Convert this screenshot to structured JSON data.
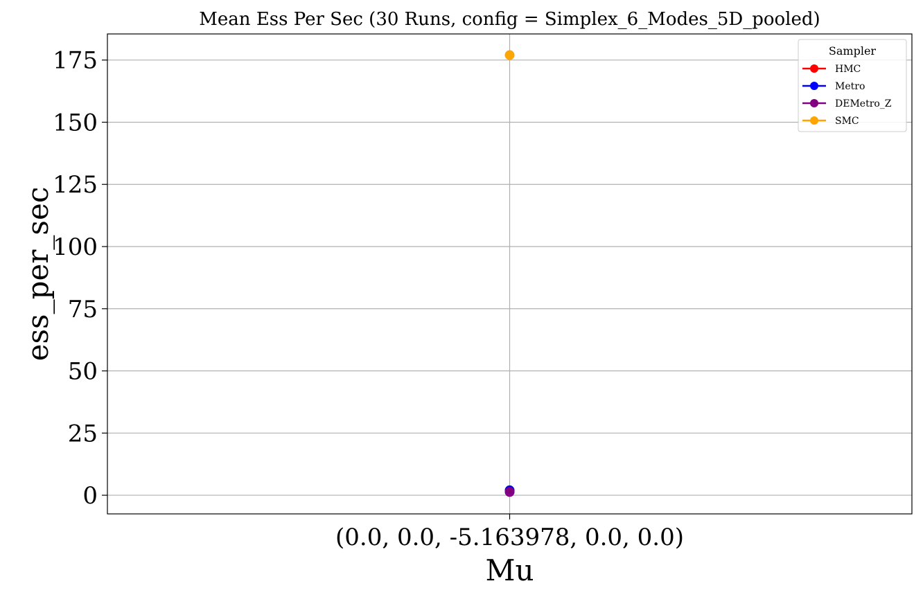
{
  "chart_data": {
    "type": "scatter",
    "title": "Mean Ess Per Sec (30 Runs, config = Simplex_6_Modes_5D_pooled)",
    "xlabel": "Mu",
    "ylabel": "ess_per_sec",
    "categories": [
      "(0.0, 0.0, -5.163978, 0.0, 0.0)"
    ],
    "ylim": [
      -7.5,
      185.5
    ],
    "yticks": [
      0,
      25,
      50,
      75,
      100,
      125,
      150,
      175
    ],
    "grid": true,
    "legend": {
      "title": "Sampler",
      "placement": "top-right"
    },
    "series": [
      {
        "name": "HMC",
        "color": "#ff0000",
        "values": [
          1.6
        ]
      },
      {
        "name": "Metro",
        "color": "#0000ff",
        "values": [
          2.0
        ]
      },
      {
        "name": "DEMetro_Z",
        "color": "#800080",
        "values": [
          1.3
        ]
      },
      {
        "name": "SMC",
        "color": "#ffa500",
        "values": [
          177.0
        ]
      }
    ]
  }
}
